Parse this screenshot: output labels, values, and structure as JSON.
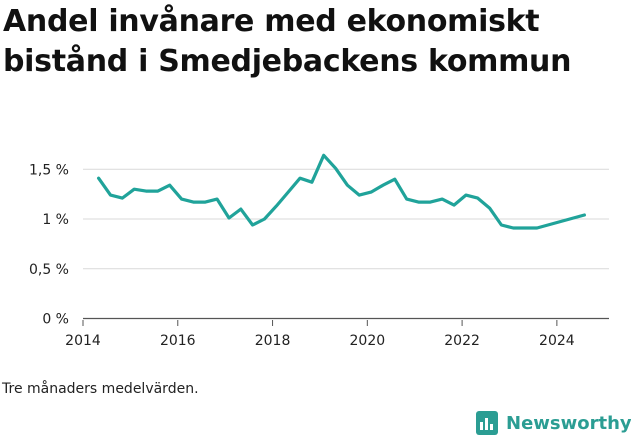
{
  "title": "Andel invånare med ekonomiskt bistånd i Smedjebackens kommun",
  "note": "Tre månaders medelvärden.",
  "brand": {
    "name": "Newsworthy",
    "icon": "newsworthy-logo-icon",
    "color": "#2b9d93"
  },
  "chart_data": {
    "type": "line",
    "title": "Andel invånare med ekonomiskt bistånd i Smedjebackens kommun",
    "xlabel": "",
    "ylabel": "",
    "xlim": [
      2014.0,
      2025.1
    ],
    "ylim": [
      0,
      1.6
    ],
    "grid": "horizontal",
    "line_color": "#20a39a",
    "x_ticks": [
      2014,
      2016,
      2018,
      2020,
      2022,
      2024
    ],
    "x_tick_labels": [
      "2014",
      "2016",
      "2018",
      "2020",
      "2022",
      "2024"
    ],
    "y_ticks": [
      0,
      0.5,
      1,
      1.5
    ],
    "y_tick_labels": [
      "0 %",
      "0,5 %",
      "1 %",
      "1,5 %"
    ],
    "series": [
      {
        "x": [
          2014.33,
          2014.58,
          2014.83,
          2015.08,
          2015.33,
          2015.58,
          2015.83,
          2016.08,
          2016.33,
          2016.58,
          2016.83,
          2017.08,
          2017.33,
          2017.58,
          2017.83,
          2018.08,
          2018.33,
          2018.58,
          2018.83,
          2019.08,
          2019.33,
          2019.58,
          2019.83,
          2020.08,
          2020.33,
          2020.58,
          2020.83,
          2021.08,
          2021.33,
          2021.58,
          2021.83,
          2022.08,
          2022.33,
          2022.58,
          2022.83,
          2023.08,
          2023.33,
          2023.58,
          2024.58
        ],
        "values": [
          1.41,
          1.24,
          1.21,
          1.3,
          1.28,
          1.28,
          1.34,
          1.2,
          1.17,
          1.17,
          1.2,
          1.01,
          1.1,
          0.94,
          1.0,
          1.13,
          1.27,
          1.41,
          1.37,
          1.64,
          1.51,
          1.34,
          1.24,
          1.27,
          1.34,
          1.4,
          1.2,
          1.17,
          1.17,
          1.2,
          1.14,
          1.24,
          1.21,
          1.11,
          0.94,
          0.91,
          0.91,
          0.91,
          1.04
        ]
      }
    ]
  }
}
